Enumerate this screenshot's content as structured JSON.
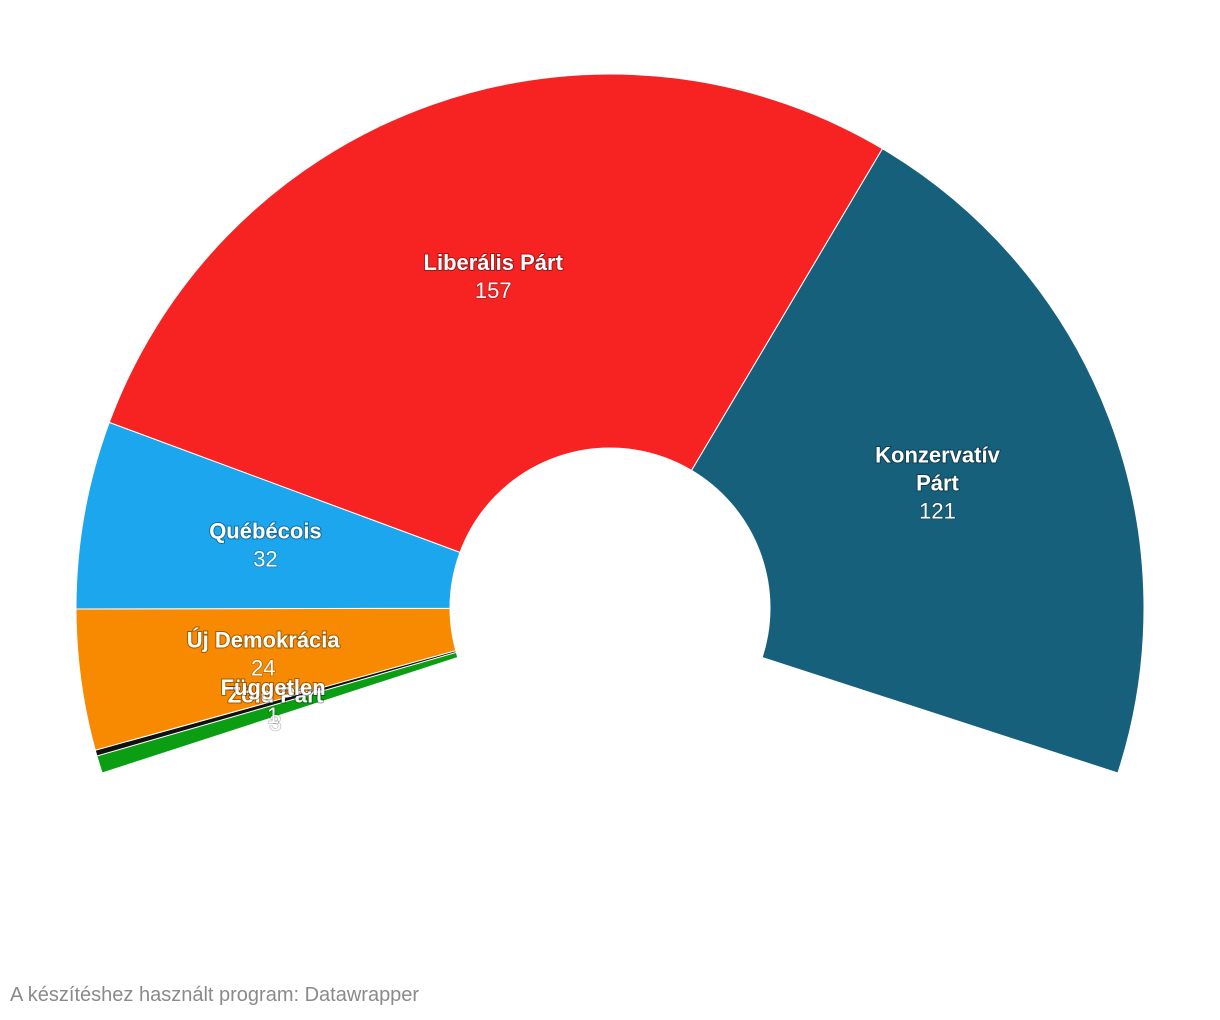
{
  "chart_data": {
    "type": "pie",
    "subtype": "parliament-arc",
    "total_seats": 338,
    "slices": [
      {
        "name": "Zöld Párt",
        "name_lines": [
          "Zöld Párt"
        ],
        "value": 3,
        "color": "#0b9e12"
      },
      {
        "name": "Független",
        "name_lines": [
          "Független"
        ],
        "value": 1,
        "color": "#111111"
      },
      {
        "name": "Új Demokrácia",
        "name_lines": [
          "Új Demokrácia"
        ],
        "value": 24,
        "color": "#f78a00"
      },
      {
        "name": "Québécois",
        "name_lines": [
          "Québécois"
        ],
        "value": 32,
        "color": "#1ca6ed"
      },
      {
        "name": "Liberális Párt",
        "name_lines": [
          "Liberális Párt"
        ],
        "value": 157,
        "color": "#f72323"
      },
      {
        "name": "Konzervatív Párt",
        "name_lines": [
          "Konzervatív",
          "Párt"
        ],
        "value": 121,
        "color": "#17607c"
      }
    ]
  },
  "footer": {
    "credit": "A készítéshez használt program: Datawrapper"
  }
}
